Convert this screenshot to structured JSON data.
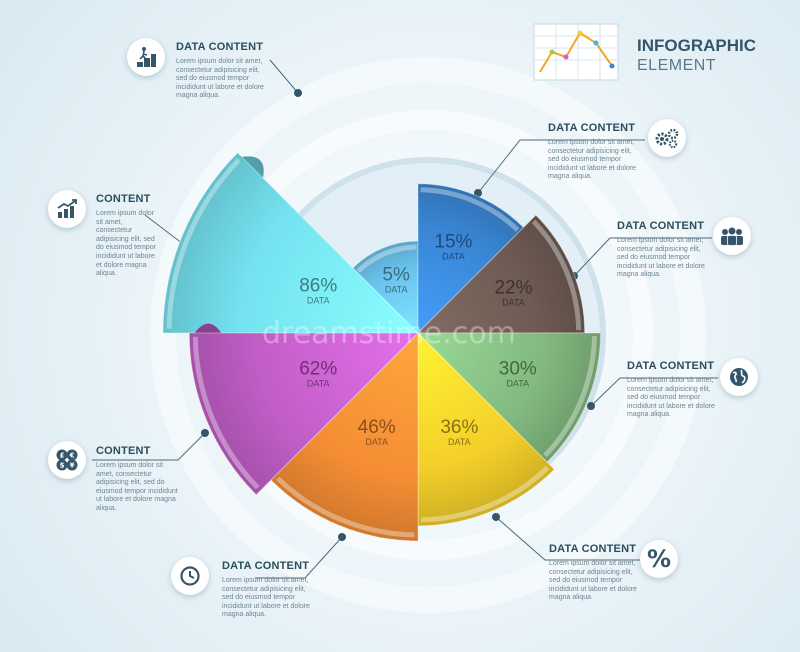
{
  "header": {
    "title": "INFOGRAPHIC",
    "subtitle": "ELEMENT"
  },
  "watermark": "dreamstime.com",
  "chart_data": {
    "type": "pie",
    "slices": [
      {
        "value": 86,
        "label": "DATA",
        "color": "#74e2f0"
      },
      {
        "value": 5,
        "label": "DATA",
        "color": "#6ac3ee"
      },
      {
        "value": 15,
        "label": "DATA",
        "color": "#3a86d5"
      },
      {
        "value": 22,
        "label": "DATA",
        "color": "#6e5b53"
      },
      {
        "value": 30,
        "label": "DATA",
        "color": "#82b97f"
      },
      {
        "value": 36,
        "label": "DATA",
        "color": "#f4cf2a"
      },
      {
        "value": 46,
        "label": "DATA",
        "color": "#f58d34"
      },
      {
        "value": 62,
        "label": "DATA",
        "color": "#c25ec8"
      }
    ],
    "value_suffix": "%"
  },
  "callouts": [
    {
      "icon": "person-steps-icon",
      "title": "DATA CONTENT",
      "body": "Lorem ipsum dolor sit amet, consectetur adipisicing elit, sed do eiusmod tempor incididunt ut labore et dolore magna aliqua."
    },
    {
      "icon": "gears-icon",
      "title": "DATA CONTENT",
      "body": "Lorem ipsum dolor sit amet, consectetur adipisicing elit, sed do eiusmod tempor incididunt ut labore et dolore magna aliqua."
    },
    {
      "icon": "chart-up-icon",
      "title": "CONTENT",
      "body": "Lorem ipsum dolor sit amet, consectetur adipisicing elit, sed do eiusmod tempor incididunt ut labore et dolore magna aliqua."
    },
    {
      "icon": "people-icon",
      "title": "DATA CONTENT",
      "body": "Lorem ipsum dolor sit amet, consectetur adipisicing elit, sed do eiusmod tempor incididunt ut labore et dolore magna aliqua."
    },
    {
      "icon": "globe-icon",
      "title": "DATA CONTENT",
      "body": "Lorem ipsum dolor sit amet, consectetur adipisicing elit, sed do eiusmod tempor incididunt ut labore et dolore magna aliqua."
    },
    {
      "icon": "currency-icon",
      "title": "CONTENT",
      "body": "Lorem ipsum dolor sit amet, consectetur adipisicing elit, sed do eiusmod tempor incididunt ut labore et dolore magna aliqua."
    },
    {
      "icon": "clock-icon",
      "title": "DATA CONTENT",
      "body": "Lorem ipsum dolor sit amet, consectetur adipisicing elit, sed do eiusmod tempor incididunt ut labore et dolore magna aliqua."
    },
    {
      "icon": "percent-icon",
      "title": "DATA CONTENT",
      "body": "Lorem ipsum dolor sit amet, consectetur adipisicing elit, sed do eiusmod tempor incididunt ut labore et dolore magna aliqua."
    }
  ],
  "icon_glyphs": {
    "percent": "%"
  }
}
